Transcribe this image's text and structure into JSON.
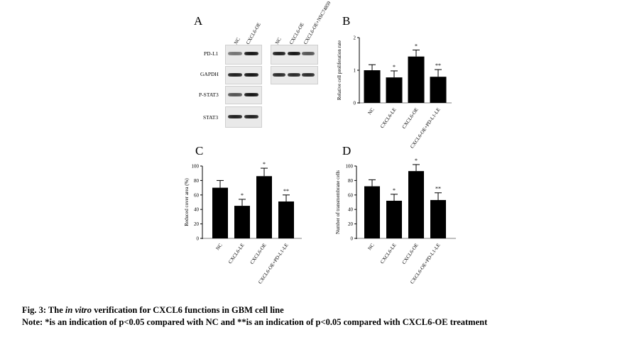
{
  "figure": {
    "panel_letters": [
      "A",
      "B",
      "C",
      "D"
    ],
    "caption": {
      "prefix": "Fig. 3: The ",
      "italic": "in vitro",
      "suffix": " verification for CXCL6 functions in GBM cell line"
    },
    "note": "Note: *is an indication of p<0.05 compared with NC and **is an indication of p<0.05 compared with CXCL6-OE treatment"
  },
  "western_blot": {
    "rows": [
      "PD-L1",
      "GAPDH",
      "P-STAT3",
      "STAT3"
    ],
    "left_lanes": [
      "NC",
      "CXCL6-OE"
    ],
    "right_lanes": [
      "NC",
      "CXCL6-OE",
      "CXCL6-OE+NSC74859"
    ],
    "left_intensity": [
      [
        0.55,
        1.0
      ],
      [
        0.95,
        1.0
      ],
      [
        0.7,
        1.0
      ],
      [
        0.95,
        0.95
      ]
    ],
    "right_intensity": [
      [
        0.95,
        1.0,
        0.7
      ],
      [
        0.9,
        0.9,
        0.9
      ]
    ]
  },
  "chart_data": [
    {
      "panel": "B",
      "type": "bar",
      "ylabel": "Relative cell proliferation rate",
      "ylim": [
        0,
        2
      ],
      "yticks": [
        0,
        1,
        2
      ],
      "categories": [
        "NC",
        "CXCL6-LE",
        "CXCL6-OE",
        "CXCL6-OE+PD-L1-LE"
      ],
      "values": [
        1.0,
        0.78,
        1.42,
        0.8
      ],
      "errors": [
        0.17,
        0.2,
        0.2,
        0.22
      ],
      "significance": [
        "",
        "*",
        "*",
        "**"
      ]
    },
    {
      "panel": "C",
      "type": "bar",
      "ylabel": "Reduced cover area (%)",
      "ylim": [
        0,
        100
      ],
      "yticks": [
        0,
        20,
        40,
        60,
        80,
        100
      ],
      "categories": [
        "NC",
        "CXCL6-LE",
        "CXCL6-OE",
        "CXCL6-OE+PD-L1-LE"
      ],
      "values": [
        70,
        45,
        86,
        51
      ],
      "errors": [
        10,
        9,
        11,
        9
      ],
      "significance": [
        "",
        "*",
        "*",
        "**"
      ]
    },
    {
      "panel": "D",
      "type": "bar",
      "ylabel": "Number of transmembrane cells",
      "ylim": [
        0,
        100
      ],
      "yticks": [
        0,
        20,
        40,
        60,
        80,
        100
      ],
      "categories": [
        "NC",
        "CXCL6-LE",
        "CXCL6-OE",
        "CXCL6-OE+PD-L1-LE"
      ],
      "values": [
        72,
        52,
        93,
        53
      ],
      "errors": [
        9,
        9,
        9,
        10
      ],
      "significance": [
        "",
        "*",
        "*",
        "**"
      ]
    }
  ]
}
